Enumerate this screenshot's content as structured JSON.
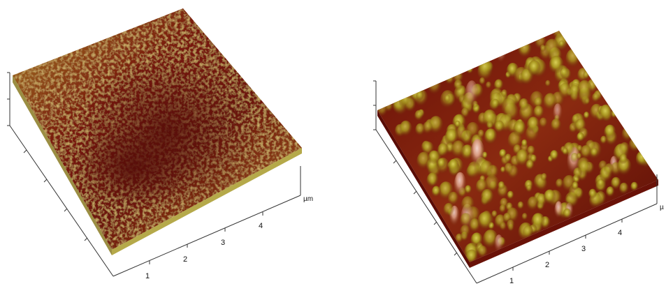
{
  "panels": [
    {
      "x_tick_labels": [
        "1",
        "2",
        "3",
        "4"
      ],
      "unit_label": "µm",
      "surface": {
        "style": "fine-rough",
        "colors": {
          "low": "#5a0a08",
          "mid": "#a8401a",
          "high": "#c8c03a",
          "peak": "#e6d870"
        }
      }
    },
    {
      "x_tick_labels": [
        "1",
        "2",
        "3",
        "4"
      ],
      "unit_label": "µ",
      "surface": {
        "style": "granular-peaks",
        "colors": {
          "low": "#4a0808",
          "mid": "#9a3a14",
          "high": "#b8b030",
          "peak": "#f0c8c0"
        }
      }
    }
  ]
}
